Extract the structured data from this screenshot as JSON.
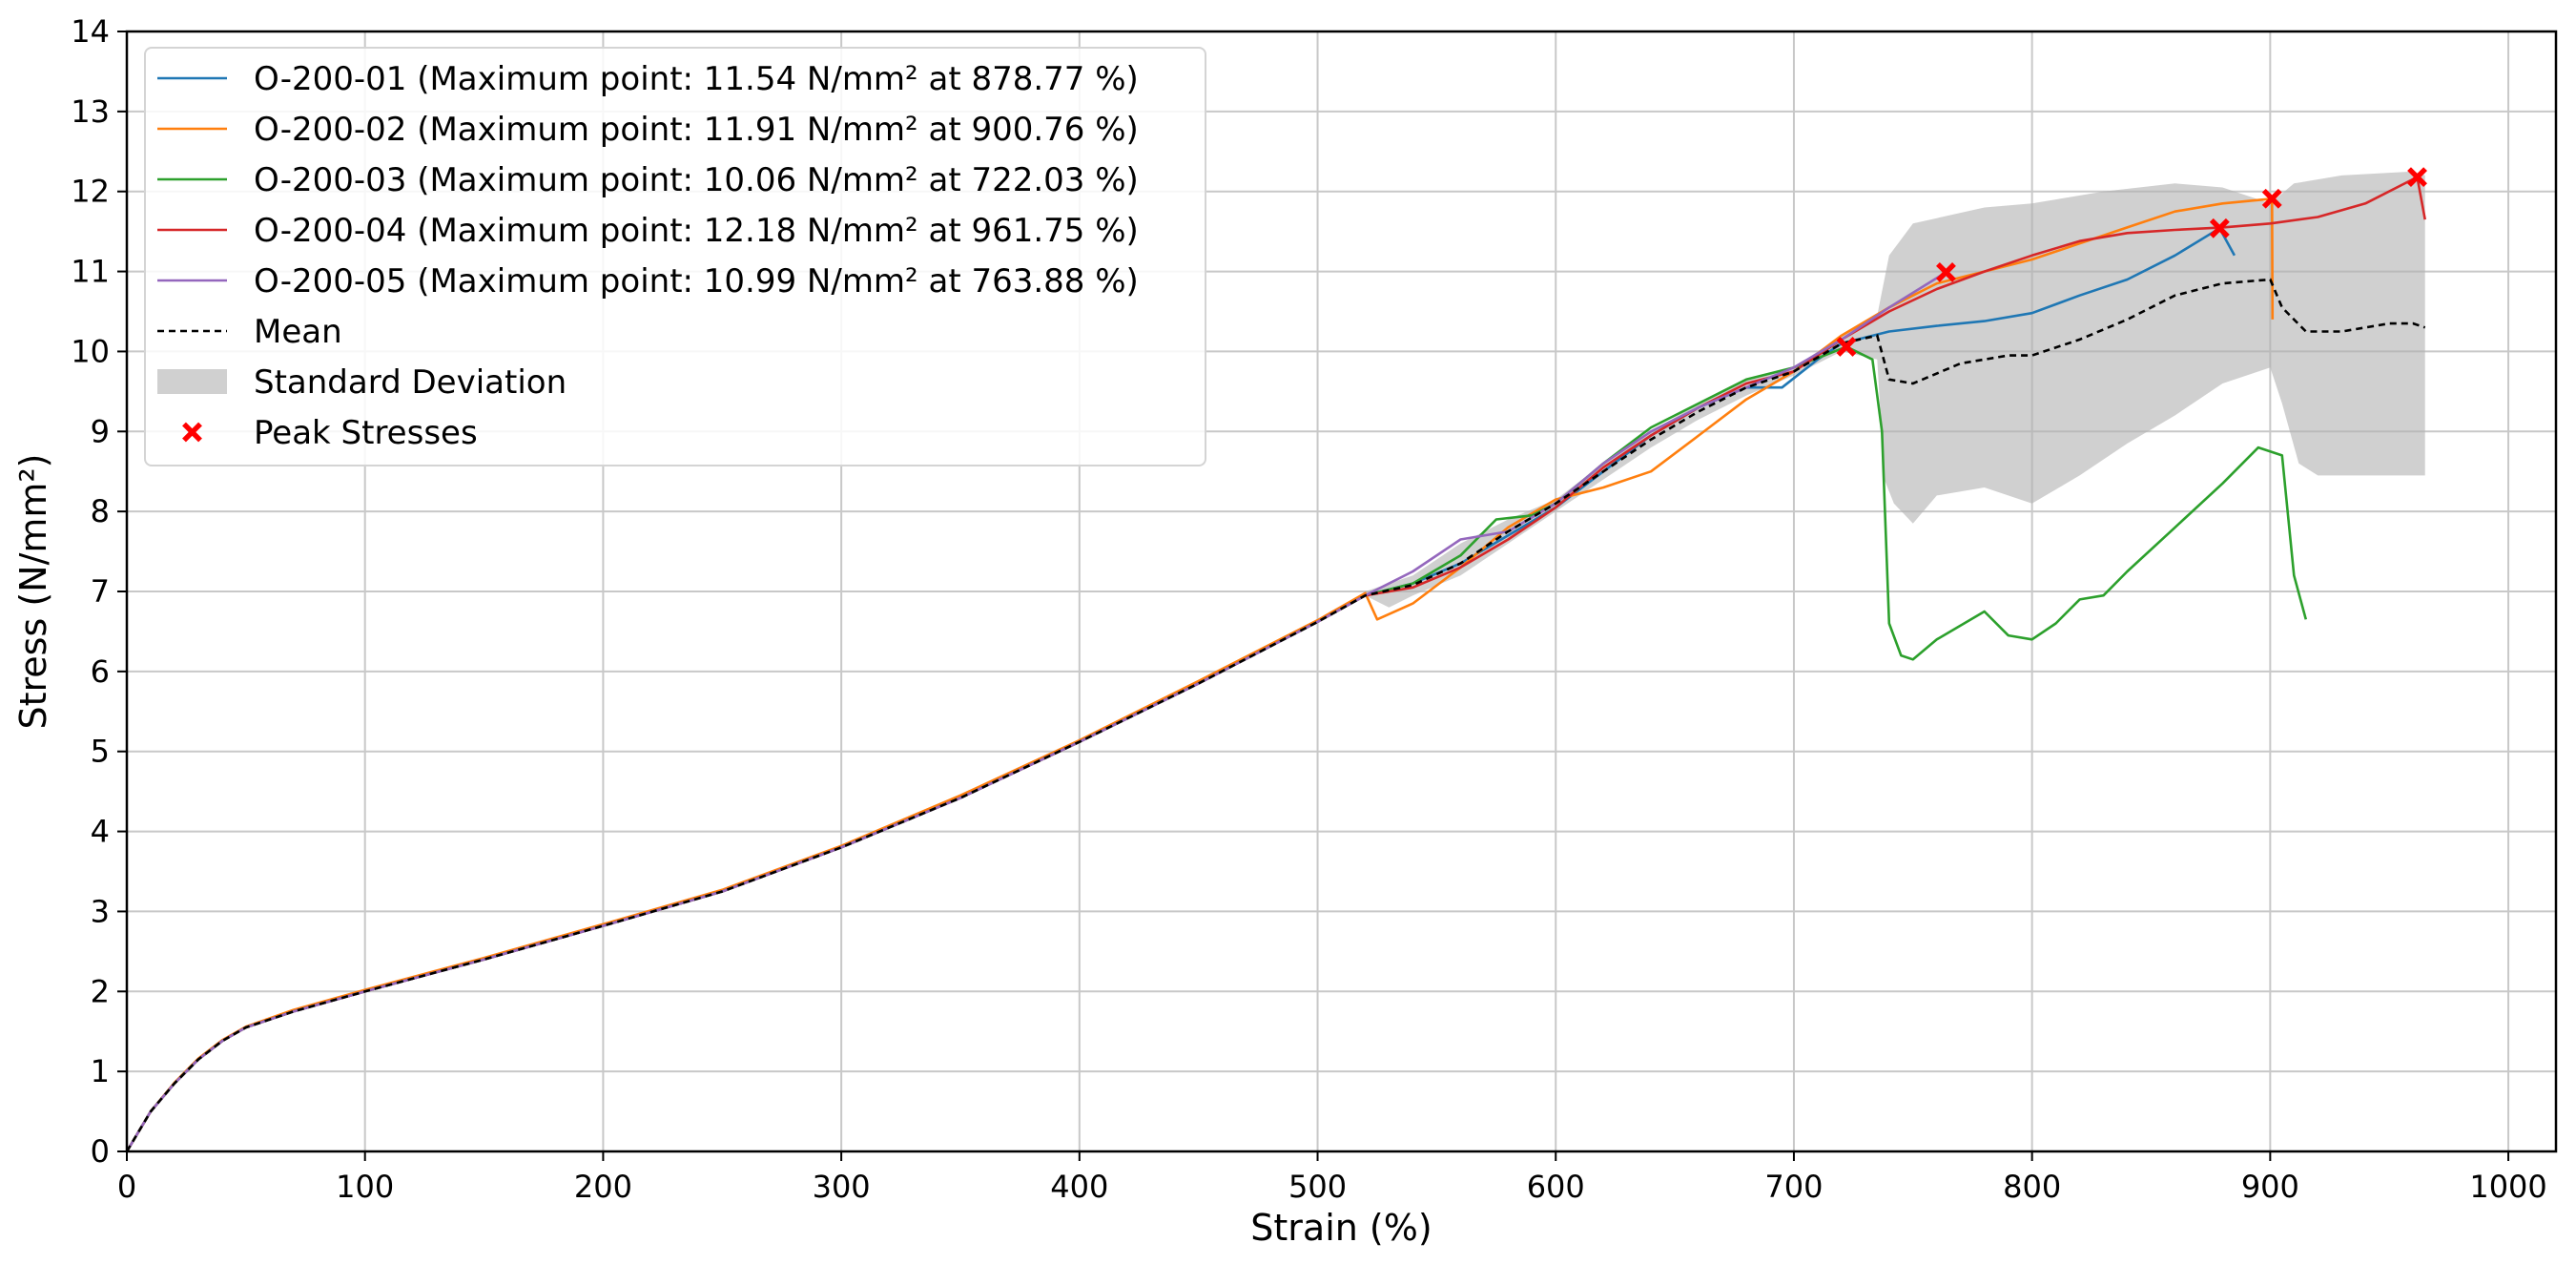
{
  "chart_data": {
    "type": "line",
    "title": "",
    "xlabel": "Strain (%)",
    "ylabel": "Stress (N/mm²)",
    "xlim": [
      0,
      1020
    ],
    "ylim": [
      0,
      14
    ],
    "xticks": [
      0,
      100,
      200,
      300,
      400,
      500,
      600,
      700,
      800,
      900,
      1000
    ],
    "yticks": [
      0,
      1,
      2,
      3,
      4,
      5,
      6,
      7,
      8,
      9,
      10,
      11,
      12,
      13,
      14
    ],
    "grid": true,
    "legend_position": "top-left",
    "series": [
      {
        "name": "O-200-01 (Maximum point: 11.54 N/mm² at 878.77 %)",
        "color": "#1f77b4",
        "points": [
          [
            0,
            0
          ],
          [
            10,
            0.5
          ],
          [
            20,
            0.85
          ],
          [
            30,
            1.15
          ],
          [
            40,
            1.38
          ],
          [
            50,
            1.55
          ],
          [
            70,
            1.75
          ],
          [
            100,
            2.0
          ],
          [
            150,
            2.4
          ],
          [
            200,
            2.82
          ],
          [
            250,
            3.25
          ],
          [
            300,
            3.8
          ],
          [
            350,
            4.42
          ],
          [
            400,
            5.12
          ],
          [
            450,
            5.85
          ],
          [
            500,
            6.62
          ],
          [
            520,
            6.95
          ],
          [
            540,
            7.1
          ],
          [
            560,
            7.35
          ],
          [
            580,
            7.7
          ],
          [
            600,
            8.05
          ],
          [
            620,
            8.5
          ],
          [
            640,
            8.95
          ],
          [
            660,
            9.3
          ],
          [
            680,
            9.55
          ],
          [
            695,
            9.55
          ],
          [
            710,
            9.9
          ],
          [
            720,
            10.1
          ],
          [
            740,
            10.25
          ],
          [
            760,
            10.32
          ],
          [
            780,
            10.38
          ],
          [
            800,
            10.48
          ],
          [
            820,
            10.7
          ],
          [
            840,
            10.9
          ],
          [
            860,
            11.2
          ],
          [
            878.77,
            11.54
          ],
          [
            885,
            11.2
          ]
        ]
      },
      {
        "name": "O-200-02 (Maximum point: 11.91 N/mm² at 900.76 %)",
        "color": "#ff7f0e",
        "points": [
          [
            0,
            0
          ],
          [
            10,
            0.5
          ],
          [
            20,
            0.86
          ],
          [
            30,
            1.16
          ],
          [
            40,
            1.39
          ],
          [
            50,
            1.56
          ],
          [
            70,
            1.77
          ],
          [
            100,
            2.02
          ],
          [
            150,
            2.42
          ],
          [
            200,
            2.84
          ],
          [
            250,
            3.27
          ],
          [
            300,
            3.82
          ],
          [
            350,
            4.45
          ],
          [
            400,
            5.14
          ],
          [
            450,
            5.88
          ],
          [
            500,
            6.64
          ],
          [
            520,
            6.98
          ],
          [
            525,
            6.65
          ],
          [
            540,
            6.85
          ],
          [
            560,
            7.3
          ],
          [
            580,
            7.8
          ],
          [
            600,
            8.15
          ],
          [
            620,
            8.3
          ],
          [
            640,
            8.5
          ],
          [
            660,
            8.95
          ],
          [
            680,
            9.4
          ],
          [
            700,
            9.75
          ],
          [
            720,
            10.2
          ],
          [
            740,
            10.55
          ],
          [
            760,
            10.85
          ],
          [
            780,
            11.0
          ],
          [
            800,
            11.15
          ],
          [
            820,
            11.35
          ],
          [
            840,
            11.55
          ],
          [
            860,
            11.75
          ],
          [
            880,
            11.85
          ],
          [
            900.76,
            11.91
          ],
          [
            901,
            10.4
          ]
        ]
      },
      {
        "name": "O-200-03 (Maximum point: 10.06 N/mm² at 722.03 %)",
        "color": "#2ca02c",
        "points": [
          [
            0,
            0
          ],
          [
            10,
            0.5
          ],
          [
            20,
            0.85
          ],
          [
            30,
            1.15
          ],
          [
            40,
            1.38
          ],
          [
            50,
            1.55
          ],
          [
            70,
            1.75
          ],
          [
            100,
            2.0
          ],
          [
            150,
            2.4
          ],
          [
            200,
            2.82
          ],
          [
            250,
            3.25
          ],
          [
            300,
            3.8
          ],
          [
            350,
            4.42
          ],
          [
            400,
            5.12
          ],
          [
            450,
            5.85
          ],
          [
            500,
            6.62
          ],
          [
            520,
            6.95
          ],
          [
            540,
            7.1
          ],
          [
            560,
            7.45
          ],
          [
            575,
            7.9
          ],
          [
            590,
            7.95
          ],
          [
            600,
            8.1
          ],
          [
            620,
            8.6
          ],
          [
            640,
            9.05
          ],
          [
            660,
            9.35
          ],
          [
            680,
            9.65
          ],
          [
            700,
            9.8
          ],
          [
            722.03,
            10.06
          ],
          [
            733,
            9.9
          ],
          [
            737,
            9.0
          ],
          [
            740,
            6.6
          ],
          [
            745,
            6.2
          ],
          [
            750,
            6.15
          ],
          [
            760,
            6.4
          ],
          [
            780,
            6.75
          ],
          [
            790,
            6.45
          ],
          [
            800,
            6.4
          ],
          [
            810,
            6.6
          ],
          [
            820,
            6.9
          ],
          [
            830,
            6.95
          ],
          [
            840,
            7.25
          ],
          [
            860,
            7.8
          ],
          [
            880,
            8.35
          ],
          [
            895,
            8.8
          ],
          [
            905,
            8.7
          ],
          [
            910,
            7.2
          ],
          [
            915,
            6.65
          ]
        ]
      },
      {
        "name": "O-200-04 (Maximum point: 12.18 N/mm² at 961.75 %)",
        "color": "#d62728",
        "points": [
          [
            0,
            0
          ],
          [
            10,
            0.5
          ],
          [
            20,
            0.85
          ],
          [
            30,
            1.15
          ],
          [
            40,
            1.38
          ],
          [
            50,
            1.55
          ],
          [
            70,
            1.75
          ],
          [
            100,
            2.0
          ],
          [
            150,
            2.4
          ],
          [
            200,
            2.82
          ],
          [
            250,
            3.25
          ],
          [
            300,
            3.8
          ],
          [
            350,
            4.42
          ],
          [
            400,
            5.12
          ],
          [
            450,
            5.85
          ],
          [
            500,
            6.62
          ],
          [
            520,
            6.95
          ],
          [
            540,
            7.05
          ],
          [
            560,
            7.3
          ],
          [
            580,
            7.65
          ],
          [
            600,
            8.05
          ],
          [
            620,
            8.55
          ],
          [
            640,
            8.95
          ],
          [
            660,
            9.3
          ],
          [
            680,
            9.6
          ],
          [
            700,
            9.75
          ],
          [
            720,
            10.15
          ],
          [
            740,
            10.5
          ],
          [
            760,
            10.78
          ],
          [
            780,
            11.0
          ],
          [
            800,
            11.2
          ],
          [
            820,
            11.38
          ],
          [
            840,
            11.48
          ],
          [
            860,
            11.52
          ],
          [
            880,
            11.55
          ],
          [
            900,
            11.6
          ],
          [
            920,
            11.68
          ],
          [
            940,
            11.85
          ],
          [
            961.75,
            12.18
          ],
          [
            965,
            11.65
          ]
        ]
      },
      {
        "name": "O-200-05 (Maximum point: 10.99 N/mm² at 763.88 %)",
        "color": "#9467bd",
        "points": [
          [
            0,
            0
          ],
          [
            10,
            0.5
          ],
          [
            20,
            0.85
          ],
          [
            30,
            1.15
          ],
          [
            40,
            1.38
          ],
          [
            50,
            1.55
          ],
          [
            70,
            1.75
          ],
          [
            100,
            2.0
          ],
          [
            150,
            2.4
          ],
          [
            200,
            2.82
          ],
          [
            250,
            3.25
          ],
          [
            300,
            3.8
          ],
          [
            350,
            4.42
          ],
          [
            400,
            5.12
          ],
          [
            450,
            5.85
          ],
          [
            500,
            6.62
          ],
          [
            520,
            6.95
          ],
          [
            540,
            7.25
          ],
          [
            560,
            7.65
          ],
          [
            580,
            7.75
          ],
          [
            600,
            8.1
          ],
          [
            620,
            8.6
          ],
          [
            640,
            9.0
          ],
          [
            660,
            9.3
          ],
          [
            680,
            9.55
          ],
          [
            700,
            9.8
          ],
          [
            720,
            10.15
          ],
          [
            740,
            10.55
          ],
          [
            763.88,
            10.99
          ]
        ]
      }
    ],
    "mean": {
      "name": "Mean",
      "color": "#000000",
      "points": [
        [
          0,
          0
        ],
        [
          10,
          0.5
        ],
        [
          20,
          0.85
        ],
        [
          30,
          1.15
        ],
        [
          40,
          1.38
        ],
        [
          50,
          1.55
        ],
        [
          70,
          1.75
        ],
        [
          100,
          2.0
        ],
        [
          150,
          2.4
        ],
        [
          200,
          2.82
        ],
        [
          250,
          3.25
        ],
        [
          300,
          3.8
        ],
        [
          350,
          4.42
        ],
        [
          400,
          5.12
        ],
        [
          450,
          5.85
        ],
        [
          500,
          6.62
        ],
        [
          520,
          6.95
        ],
        [
          540,
          7.08
        ],
        [
          560,
          7.35
        ],
        [
          580,
          7.75
        ],
        [
          600,
          8.1
        ],
        [
          620,
          8.5
        ],
        [
          640,
          8.9
        ],
        [
          660,
          9.25
        ],
        [
          680,
          9.55
        ],
        [
          700,
          9.75
        ],
        [
          720,
          10.1
        ],
        [
          735,
          10.2
        ],
        [
          740,
          9.65
        ],
        [
          750,
          9.6
        ],
        [
          770,
          9.85
        ],
        [
          790,
          9.95
        ],
        [
          800,
          9.95
        ],
        [
          820,
          10.15
        ],
        [
          840,
          10.4
        ],
        [
          860,
          10.7
        ],
        [
          880,
          10.85
        ],
        [
          900,
          10.9
        ],
        [
          905,
          10.55
        ],
        [
          915,
          10.25
        ],
        [
          930,
          10.25
        ],
        [
          950,
          10.35
        ],
        [
          960,
          10.35
        ],
        [
          965,
          10.3
        ]
      ]
    },
    "std_band": {
      "name": "Standard Deviation",
      "color": "#b0b0b0",
      "upper": [
        [
          520,
          7.0
        ],
        [
          540,
          7.2
        ],
        [
          560,
          7.6
        ],
        [
          580,
          7.9
        ],
        [
          600,
          8.15
        ],
        [
          620,
          8.6
        ],
        [
          640,
          9.0
        ],
        [
          660,
          9.35
        ],
        [
          680,
          9.65
        ],
        [
          700,
          9.8
        ],
        [
          720,
          10.2
        ],
        [
          735,
          10.45
        ],
        [
          740,
          11.2
        ],
        [
          750,
          11.6
        ],
        [
          780,
          11.8
        ],
        [
          800,
          11.85
        ],
        [
          830,
          12.0
        ],
        [
          860,
          12.1
        ],
        [
          880,
          12.05
        ],
        [
          900,
          11.85
        ],
        [
          910,
          12.1
        ],
        [
          930,
          12.2
        ],
        [
          960,
          12.25
        ],
        [
          965,
          12.2
        ]
      ],
      "lower": [
        [
          965,
          8.45
        ],
        [
          940,
          8.45
        ],
        [
          920,
          8.45
        ],
        [
          912,
          8.6
        ],
        [
          905,
          9.35
        ],
        [
          900,
          9.8
        ],
        [
          880,
          9.6
        ],
        [
          860,
          9.2
        ],
        [
          840,
          8.85
        ],
        [
          820,
          8.45
        ],
        [
          800,
          8.1
        ],
        [
          780,
          8.3
        ],
        [
          760,
          8.2
        ],
        [
          750,
          7.85
        ],
        [
          742,
          8.1
        ],
        [
          738,
          8.4
        ],
        [
          735,
          9.9
        ],
        [
          720,
          10.0
        ],
        [
          700,
          9.7
        ],
        [
          680,
          9.45
        ],
        [
          660,
          9.15
        ],
        [
          640,
          8.8
        ],
        [
          620,
          8.4
        ],
        [
          600,
          8.0
        ],
        [
          580,
          7.6
        ],
        [
          560,
          7.2
        ],
        [
          540,
          6.95
        ],
        [
          530,
          6.8
        ],
        [
          520,
          6.95
        ]
      ]
    },
    "peaks": {
      "name": "Peak Stresses",
      "color": "#ff0000",
      "points": [
        [
          878.77,
          11.54
        ],
        [
          900.76,
          11.91
        ],
        [
          722.03,
          10.06
        ],
        [
          961.75,
          12.18
        ],
        [
          763.88,
          10.99
        ]
      ]
    }
  }
}
